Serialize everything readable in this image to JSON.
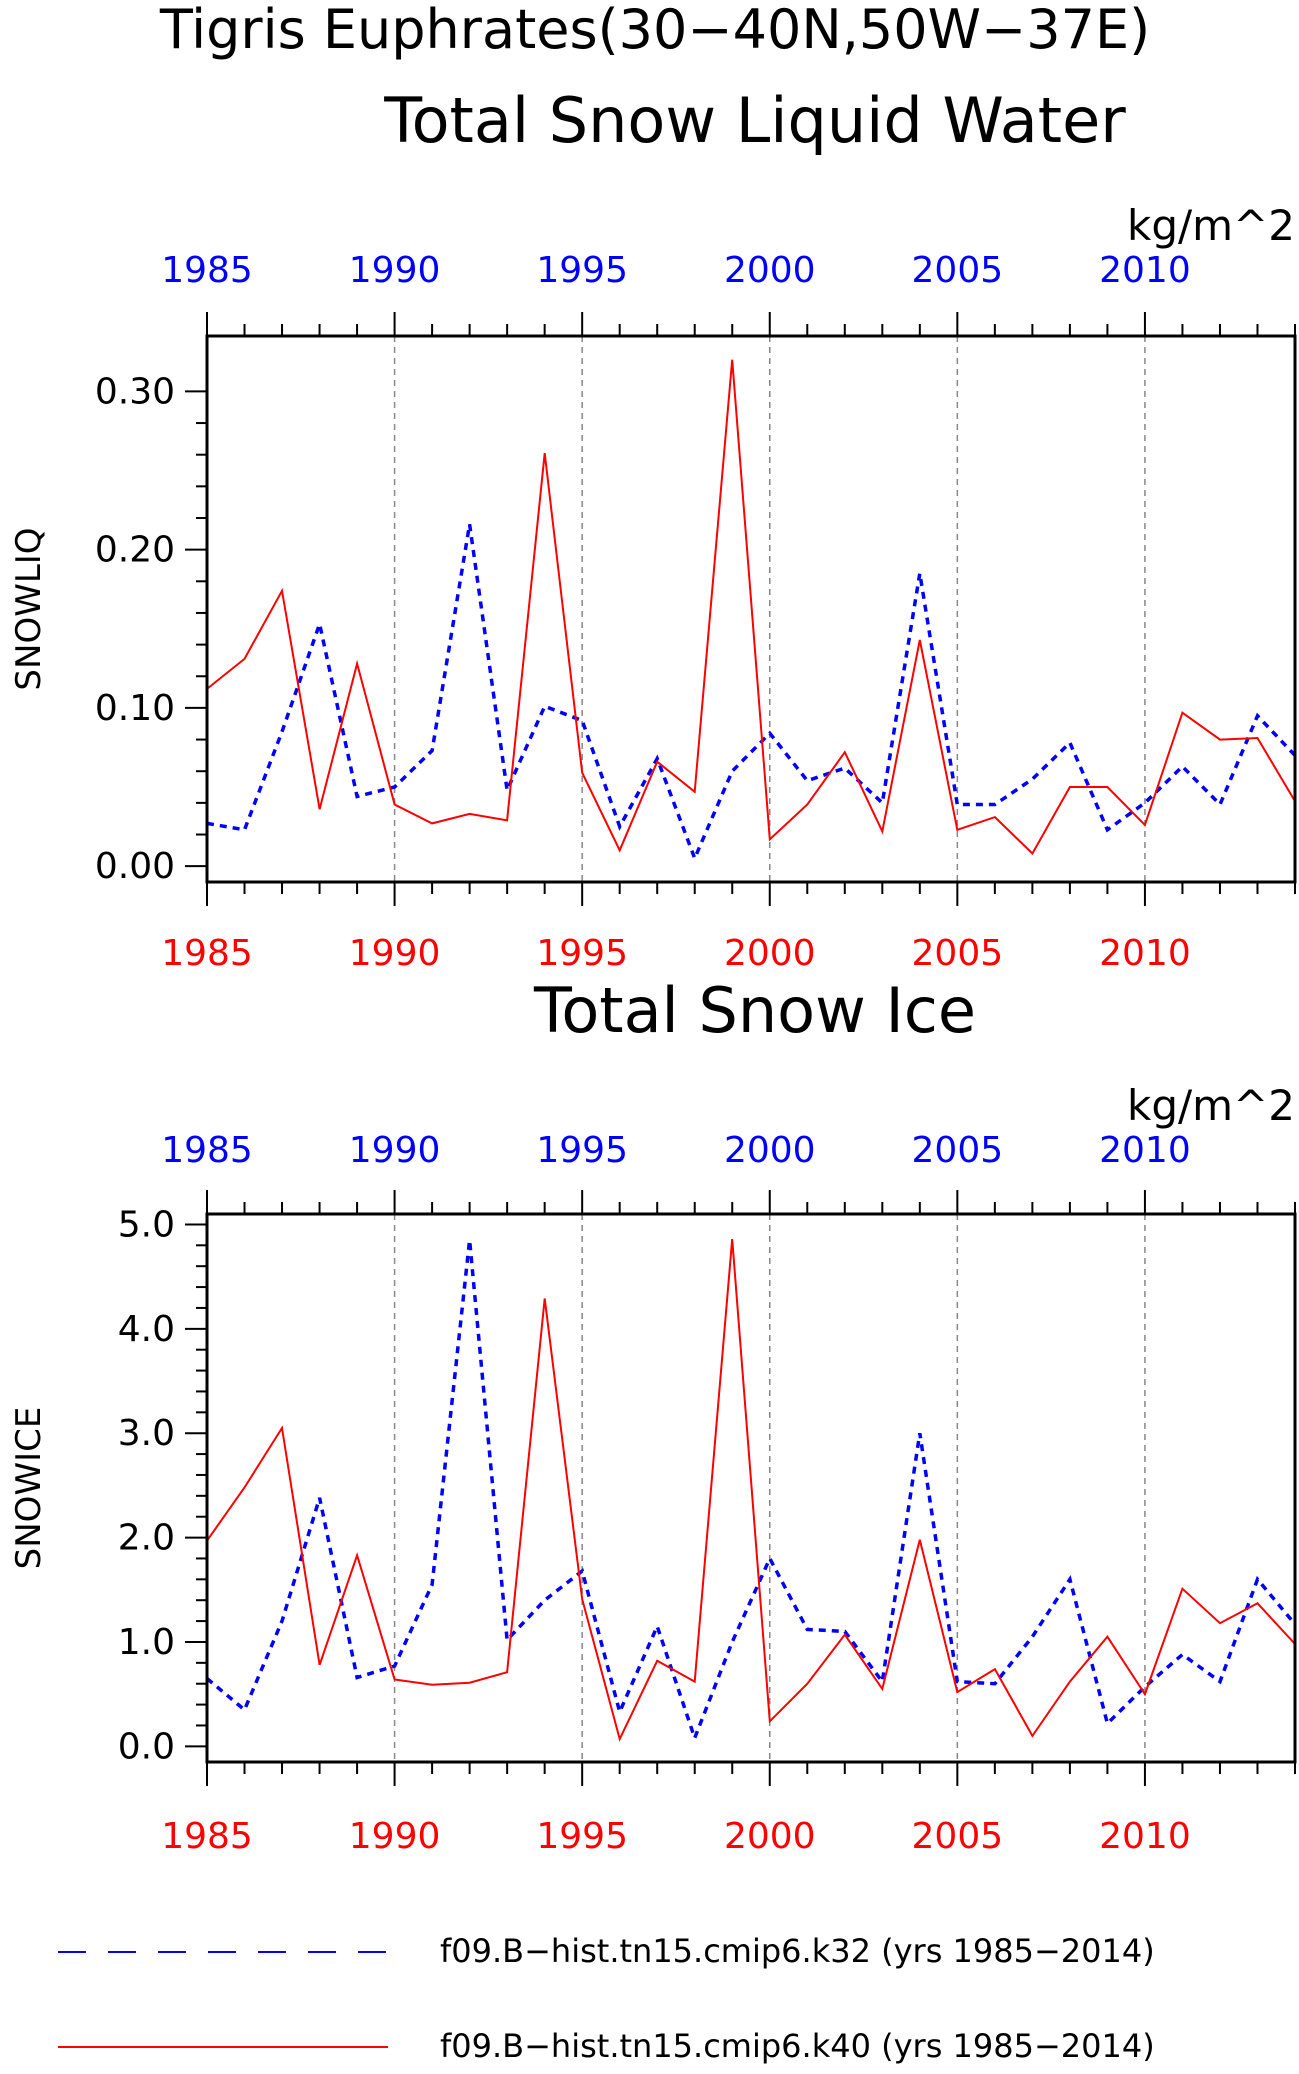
{
  "title_line1": "Tigris Euphrates(30−40N,50W−37E)",
  "colors": {
    "blue": "#0000ff",
    "red": "#ff0000",
    "grid": "#888888"
  },
  "chart_data": [
    {
      "type": "line",
      "title": "Total Snow Liquid Water",
      "ylabel": "SNOWLIQ",
      "units": "kg/m^2",
      "xlim": [
        1985,
        2014
      ],
      "ylim": [
        -0.01,
        0.335
      ],
      "yticks": [
        0.0,
        0.1,
        0.2,
        0.3
      ],
      "ytick_labels": [
        "0.00",
        "0.10",
        "0.20",
        "0.30"
      ],
      "ytick_minor_step": 0.02,
      "xticks": [
        1985,
        1990,
        1995,
        2000,
        2005,
        2010
      ],
      "xtick_labels": [
        "1985",
        "1990",
        "1995",
        "2000",
        "2005",
        "2010"
      ],
      "xgrid": [
        1990,
        1995,
        2000,
        2005,
        2010
      ],
      "x": [
        1985,
        1986,
        1987,
        1988,
        1989,
        1990,
        1991,
        1992,
        1993,
        1994,
        1995,
        1996,
        1997,
        1998,
        1999,
        2000,
        2001,
        2002,
        2003,
        2004,
        2005,
        2006,
        2007,
        2008,
        2009,
        2010,
        2011,
        2012,
        2013,
        2014
      ],
      "series": [
        {
          "color": "blue",
          "dash": true,
          "values": [
            0.027,
            0.023,
            0.085,
            0.153,
            0.044,
            0.05,
            0.073,
            0.216,
            0.048,
            0.101,
            0.092,
            0.025,
            0.068,
            0.005,
            0.06,
            0.084,
            0.054,
            0.062,
            0.04,
            0.185,
            0.039,
            0.039,
            0.055,
            0.078,
            0.023,
            0.04,
            0.063,
            0.039,
            0.095,
            0.07
          ]
        },
        {
          "color": "red",
          "dash": false,
          "values": [
            0.112,
            0.131,
            0.174,
            0.036,
            0.128,
            0.039,
            0.027,
            0.033,
            0.029,
            0.261,
            0.059,
            0.01,
            0.066,
            0.047,
            0.32,
            0.017,
            0.039,
            0.072,
            0.022,
            0.143,
            0.023,
            0.031,
            0.008,
            0.05,
            0.05,
            0.026,
            0.097,
            0.08,
            0.081,
            0.041
          ]
        }
      ]
    },
    {
      "type": "line",
      "title": "Total Snow Ice",
      "ylabel": "SNOWICE",
      "units": "kg/m^2",
      "xlim": [
        1985,
        2014
      ],
      "ylim": [
        -0.15,
        5.1
      ],
      "yticks": [
        0.0,
        1.0,
        2.0,
        3.0,
        4.0,
        5.0
      ],
      "ytick_labels": [
        "0.0",
        "1.0",
        "2.0",
        "3.0",
        "4.0",
        "5.0"
      ],
      "ytick_minor_step": 0.2,
      "xticks": [
        1985,
        1990,
        1995,
        2000,
        2005,
        2010
      ],
      "xtick_labels": [
        "1985",
        "1990",
        "1995",
        "2000",
        "2005",
        "2010"
      ],
      "xgrid": [
        1990,
        1995,
        2000,
        2005,
        2010
      ],
      "x": [
        1985,
        1986,
        1987,
        1988,
        1989,
        1990,
        1991,
        1992,
        1993,
        1994,
        1995,
        1996,
        1997,
        1998,
        1999,
        2000,
        2001,
        2002,
        2003,
        2004,
        2005,
        2006,
        2007,
        2008,
        2009,
        2010,
        2011,
        2012,
        2013,
        2014
      ],
      "series": [
        {
          "color": "blue",
          "dash": true,
          "values": [
            0.65,
            0.35,
            1.2,
            2.38,
            0.66,
            0.77,
            1.55,
            4.85,
            1.02,
            1.4,
            1.68,
            0.33,
            1.15,
            0.08,
            1.0,
            1.8,
            1.12,
            1.1,
            0.62,
            3.0,
            0.62,
            0.6,
            1.05,
            1.6,
            0.22,
            0.57,
            0.88,
            0.62,
            1.6,
            1.17
          ]
        },
        {
          "color": "red",
          "dash": false,
          "values": [
            1.97,
            2.48,
            3.05,
            0.78,
            1.83,
            0.64,
            0.59,
            0.61,
            0.71,
            4.29,
            1.41,
            0.07,
            0.82,
            0.62,
            4.86,
            0.24,
            0.6,
            1.07,
            0.55,
            1.98,
            0.52,
            0.74,
            0.1,
            0.62,
            1.05,
            0.5,
            1.51,
            1.18,
            1.37,
            0.98
          ]
        }
      ]
    }
  ],
  "legend": [
    {
      "color": "blue",
      "dash": true,
      "label": "f09.B−hist.tn15.cmip6.k32 (yrs 1985−2014)"
    },
    {
      "color": "red",
      "dash": false,
      "label": "f09.B−hist.tn15.cmip6.k40 (yrs 1985−2014)"
    }
  ]
}
